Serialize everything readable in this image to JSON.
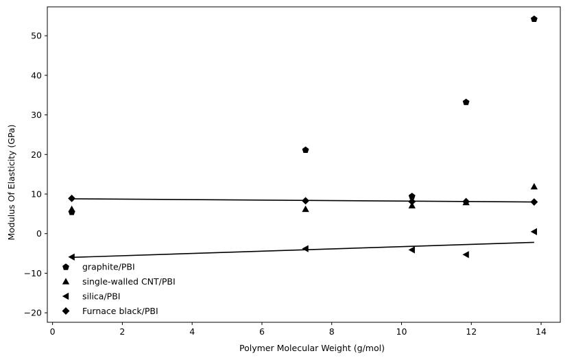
{
  "chart_data": {
    "type": "scatter",
    "xlabel": "Polymer Molecular Weight (g/mol)",
    "ylabel": "Modulus Of Elasticity (GPa)",
    "xlim": [
      -0.15,
      14.55
    ],
    "ylim": [
      -22.4,
      57.3
    ],
    "xticks": [
      0,
      2,
      4,
      6,
      8,
      10,
      12,
      14
    ],
    "yticks": [
      -20,
      -10,
      0,
      10,
      20,
      30,
      40,
      50
    ],
    "xtick_labels": [
      "0",
      "2",
      "4",
      "6",
      "8",
      "10",
      "12",
      "14"
    ],
    "ytick_labels": [
      "−20",
      "−10",
      "0",
      "10",
      "20",
      "30",
      "40",
      "50"
    ],
    "grid": false,
    "legend_position": "lower-left",
    "series": [
      {
        "name": "graphite/PBI",
        "marker": "pentagon",
        "color": "#000000",
        "x": [
          0.55,
          7.25,
          10.3,
          11.85,
          13.8
        ],
        "y": [
          5.5,
          21.2,
          9.5,
          33.3,
          54.3
        ]
      },
      {
        "name": "single-walled CNT/PBI",
        "marker": "triangle-up",
        "color": "#000000",
        "x": [
          0.55,
          7.25,
          10.3,
          11.85,
          13.8
        ],
        "y": [
          6.2,
          6.2,
          7.1,
          7.9,
          11.9
        ]
      },
      {
        "name": "silica/PBI",
        "marker": "triangle-left",
        "color": "#000000",
        "x": [
          0.55,
          7.25,
          10.3,
          11.85,
          13.8
        ],
        "y": [
          -5.9,
          -3.8,
          -4.1,
          -5.3,
          0.5
        ]
      },
      {
        "name": "Furnace black/PBI",
        "marker": "diamond",
        "color": "#000000",
        "x": [
          0.55,
          7.25,
          10.3,
          11.85,
          13.8
        ],
        "y": [
          8.9,
          8.3,
          8.1,
          8.1,
          8.0
        ]
      }
    ],
    "trend_lines": [
      {
        "x": [
          0.55,
          13.8
        ],
        "y": [
          8.8,
          8.0
        ]
      },
      {
        "x": [
          0.55,
          13.8
        ],
        "y": [
          -6.0,
          -2.2
        ]
      }
    ]
  }
}
